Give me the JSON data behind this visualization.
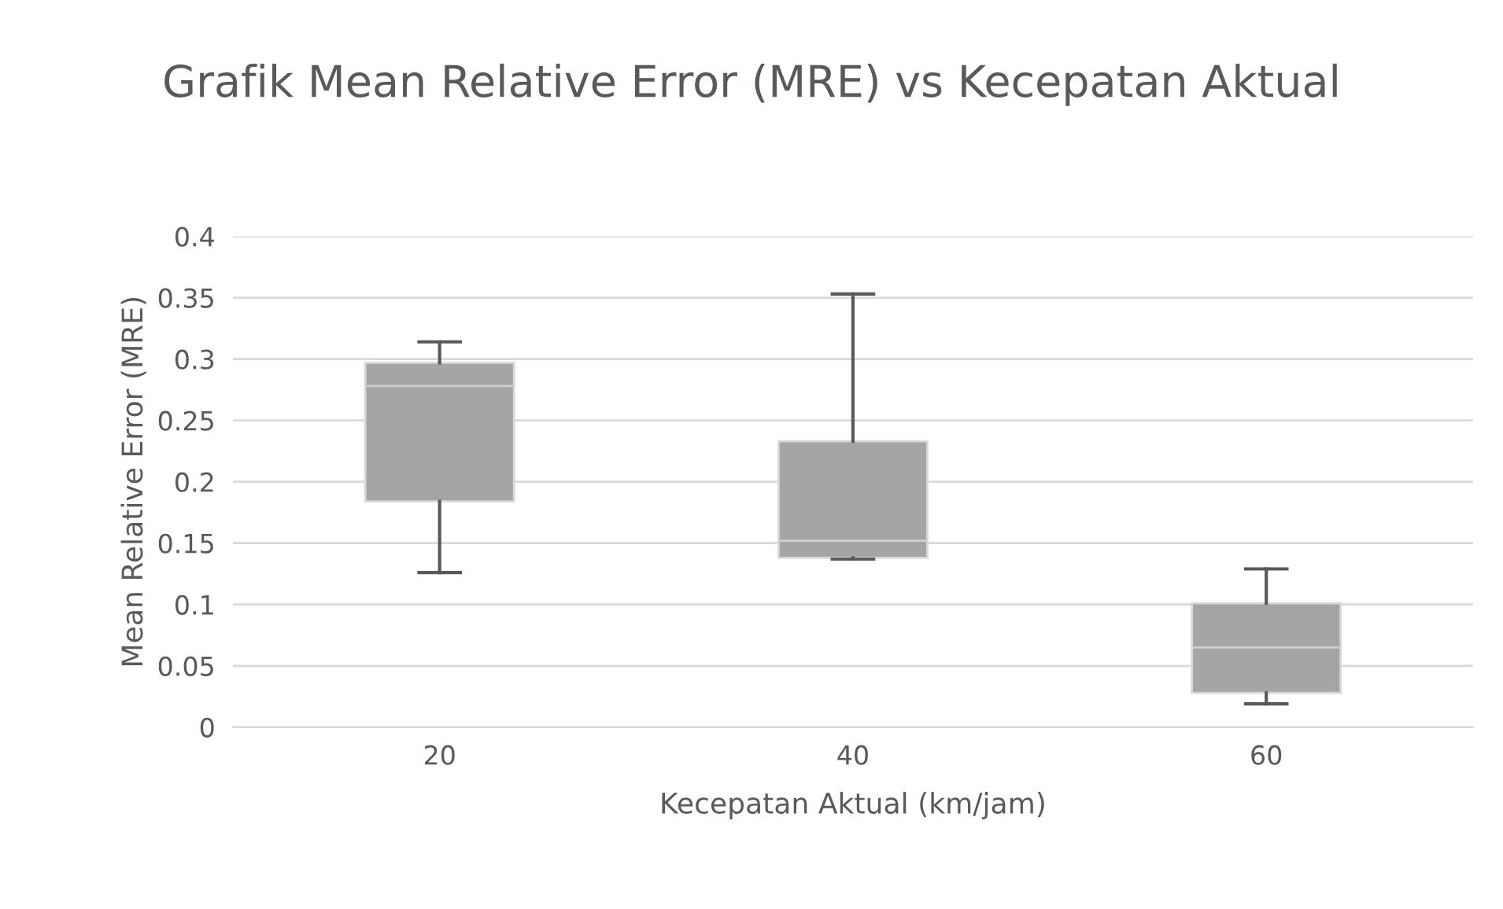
{
  "chart_data": {
    "type": "box",
    "title": "Grafik Mean Relative Error (MRE) vs Kecepatan Aktual",
    "xlabel": "Kecepatan Aktual (km/jam)",
    "ylabel": "Mean Relative Error (MRE)",
    "categories": [
      "20",
      "40",
      "60"
    ],
    "boxes": [
      {
        "low": 0.126,
        "q1": 0.184,
        "median": 0.278,
        "q3": 0.297,
        "high": 0.314
      },
      {
        "low": 0.137,
        "q1": 0.138,
        "median": 0.152,
        "q3": 0.233,
        "high": 0.353
      },
      {
        "low": 0.019,
        "q1": 0.028,
        "median": 0.065,
        "q3": 0.101,
        "high": 0.129
      }
    ],
    "color": "#a5a5a5",
    "ylim": [
      0,
      0.4
    ],
    "yticks": [
      0,
      0.05,
      0.1,
      0.15,
      0.2,
      0.25,
      0.3,
      0.35,
      0.4
    ],
    "grid": "y"
  }
}
